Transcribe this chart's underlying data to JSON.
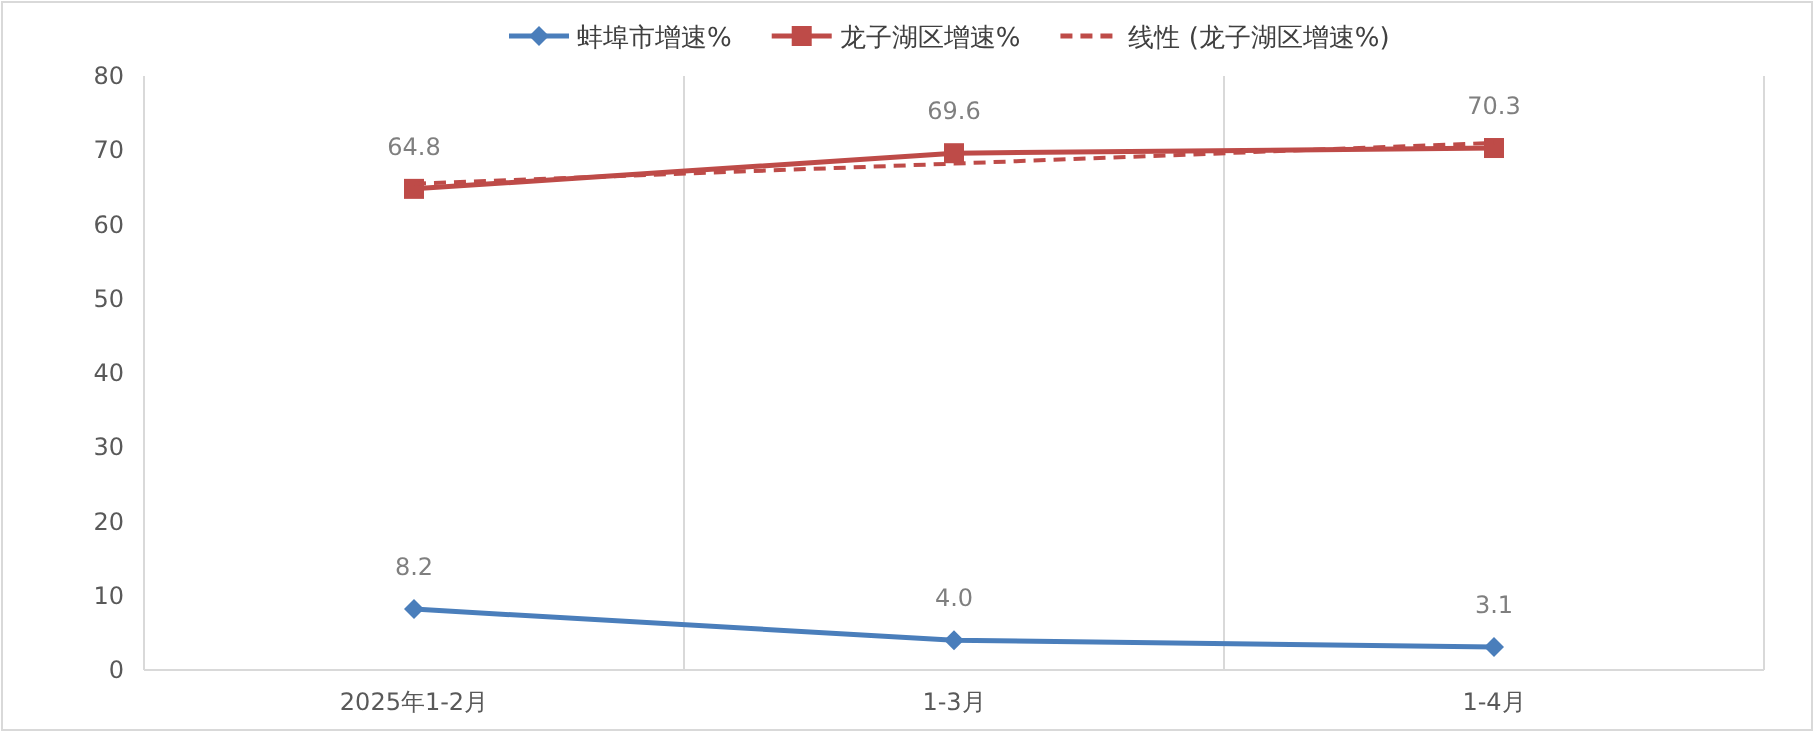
{
  "chart_data": {
    "type": "line",
    "categories": [
      "2025年1-2月",
      "1-3月",
      "1-4月"
    ],
    "series": [
      {
        "name": "蚌埠市增速%",
        "color": "#4a7ebb",
        "values": [
          8.2,
          4.0,
          3.1
        ],
        "value_labels": [
          "8.2",
          "4.0",
          "3.1"
        ],
        "marker": "diamond",
        "line_style": "solid"
      },
      {
        "name": "龙子湖区增速%",
        "color": "#be4b48",
        "values": [
          64.8,
          69.6,
          70.3
        ],
        "value_labels": [
          "64.8",
          "69.6",
          "70.3"
        ],
        "marker": "square",
        "line_style": "solid"
      },
      {
        "name": "线性 (龙子湖区增速%)",
        "color": "#be4b48",
        "type": "line",
        "x": [
          "2025年1-2月",
          "1-3月",
          "1-4月"
        ],
        "values": [
          65.5,
          68.2,
          71.0
        ],
        "marker": "none",
        "line_style": "dashed"
      }
    ],
    "ylim": [
      0,
      80
    ],
    "yticks": [
      0,
      10,
      20,
      30,
      40,
      50,
      60,
      70,
      80
    ],
    "grid": "x",
    "legend": "top"
  }
}
